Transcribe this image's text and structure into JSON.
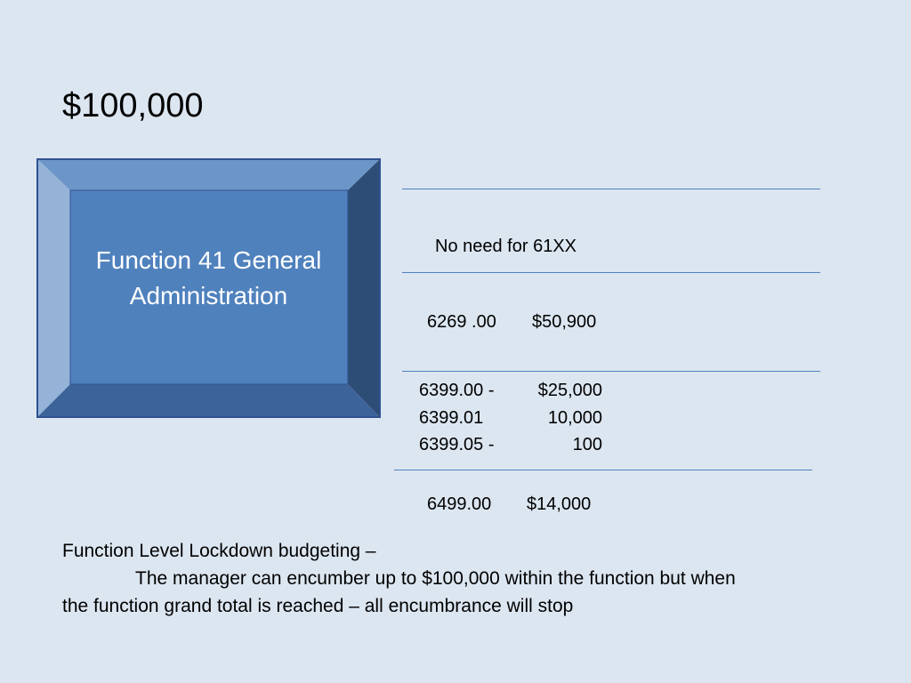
{
  "slide": {
    "title": "$100,000",
    "box": {
      "label": "Function  41 General\nAdministration",
      "colors": {
        "face": "#4f81bd",
        "top": "#6c96c8",
        "left": "#95b3d7",
        "right": "#2e4d76",
        "bottom": "#3c639a",
        "border": "#2f528f"
      }
    },
    "table": {
      "row1": {
        "text": "No need for 61XX"
      },
      "row2": {
        "code": "6269 .00",
        "amount": "$50,900"
      },
      "row3": [
        {
          "code": "6399.00 -",
          "amount": "$25,000"
        },
        {
          "code": "6399.01",
          "amount": "10,000"
        },
        {
          "code": "6399.05 -",
          "amount": "100"
        }
      ],
      "row4": {
        "code": "6499.00",
        "amount": "$14,000"
      }
    },
    "notes": {
      "heading": "Function Level Lockdown budgeting –",
      "line2": "The manager can encumber up to $100,000 within the function but when",
      "line3": "the function grand total is reached – all encumbrance will stop"
    }
  }
}
